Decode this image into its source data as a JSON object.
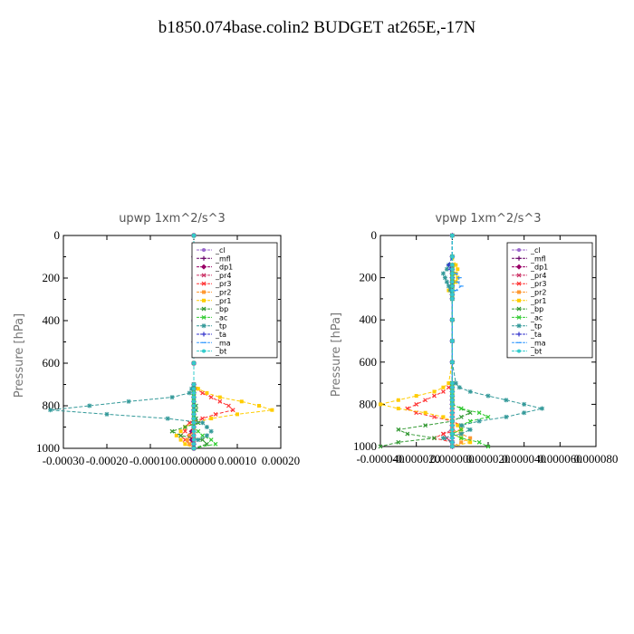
{
  "page_title": "b1850.074base.colin2  BUDGET at265E,-17N",
  "chart_data": [
    {
      "type": "line",
      "title": "upwp   1xm^2/s^3",
      "xlabel": "",
      "ylabel": "Pressure [hPa]",
      "xlim": [
        -0.0003,
        0.0002
      ],
      "ylim": [
        0,
        1000
      ],
      "y_inverted": true,
      "xticks": [
        -0.0003,
        -0.0002,
        -0.0001,
        0.0,
        0.0001,
        0.0002
      ],
      "xtick_labels": [
        "-0.00030",
        "-0.00020",
        "-0.00010",
        "0.000000",
        "0.00010",
        "0.00020"
      ],
      "yticks": [
        0,
        200,
        400,
        600,
        800,
        1000
      ],
      "ytick_labels": [
        "0",
        "200",
        "400",
        "600",
        "800",
        "1000"
      ],
      "legend_position": "top-right",
      "y": [
        0,
        100,
        200,
        300,
        400,
        500,
        600,
        700,
        720,
        740,
        760,
        780,
        800,
        820,
        840,
        860,
        880,
        900,
        920,
        940,
        960,
        980,
        1000
      ],
      "series": [
        {
          "name": "_cl",
          "color": "#9966cc",
          "values": [
            0,
            0,
            0,
            0,
            0,
            0,
            0,
            0,
            0,
            0,
            0,
            0,
            0,
            0,
            0,
            0,
            0,
            0,
            0,
            0,
            0,
            0,
            0
          ]
        },
        {
          "name": "_mfl",
          "color": "#660066",
          "values": [
            0,
            0,
            0,
            0,
            0,
            0,
            0,
            0,
            0,
            0,
            0,
            0,
            0,
            0,
            0,
            0,
            0,
            0,
            0,
            0,
            0,
            0,
            0
          ]
        },
        {
          "name": "_dp1",
          "color": "#990066",
          "values": [
            0,
            0,
            0,
            0,
            0,
            0,
            0,
            0,
            0,
            0,
            0,
            0,
            0,
            0,
            0,
            0,
            0,
            0,
            -5e-06,
            -1e-05,
            -5e-06,
            0,
            0
          ]
        },
        {
          "name": "_pr4",
          "color": "#cc3366",
          "values": [
            0,
            0,
            0,
            0,
            0,
            0,
            0,
            0,
            0,
            0,
            0,
            0,
            0,
            0,
            0,
            0,
            0,
            0,
            0,
            0,
            0,
            0,
            0
          ]
        },
        {
          "name": "_pr3",
          "color": "#ff3333",
          "values": [
            0,
            0,
            0,
            0,
            0,
            0,
            0,
            0,
            5e-06,
            2e-05,
            4e-05,
            6e-05,
            8e-05,
            9e-05,
            5e-05,
            2e-05,
            -1e-05,
            -2e-05,
            -2e-05,
            -3e-05,
            -2e-05,
            -1e-05,
            0
          ]
        },
        {
          "name": "_pr2",
          "color": "#ff9933",
          "values": [
            0,
            0,
            0,
            0,
            0,
            0,
            0,
            0,
            0,
            0,
            0,
            0,
            0,
            0,
            0,
            0,
            0,
            0,
            0,
            -1e-05,
            -1.5e-05,
            -1e-05,
            0
          ]
        },
        {
          "name": "_pr1",
          "color": "#ffcc00",
          "values": [
            0,
            0,
            0,
            0,
            0,
            0,
            0,
            0,
            1e-05,
            3e-05,
            6e-05,
            0.00011,
            0.00015,
            0.00018,
            0.0001,
            4e-05,
            0,
            -2e-05,
            -3e-05,
            -4e-05,
            -3e-05,
            -2e-05,
            0
          ]
        },
        {
          "name": "_bp",
          "color": "#339933",
          "values": [
            0,
            0,
            0,
            0,
            0,
            0,
            0,
            0,
            0,
            0,
            0,
            0,
            5e-06,
            5e-06,
            0,
            5e-06,
            1e-05,
            -2e-05,
            -5e-05,
            -3e-05,
            2e-05,
            3e-05,
            0
          ]
        },
        {
          "name": "_ac",
          "color": "#33cc33",
          "values": [
            0,
            0,
            0,
            0,
            0,
            0,
            0,
            0,
            0,
            0,
            0,
            0,
            0,
            0,
            0,
            0,
            0,
            0,
            1e-05,
            2e-05,
            4e-05,
            5e-05,
            0
          ]
        },
        {
          "name": "_tp",
          "color": "#339999",
          "values": [
            0,
            0,
            0,
            0,
            0,
            0,
            0,
            0,
            -5e-06,
            -1e-05,
            -5e-05,
            -0.00015,
            -0.00024,
            -0.00033,
            -0.0002,
            -6e-05,
            2e-05,
            3e-05,
            4e-05,
            3e-05,
            1e-05,
            0,
            0
          ]
        },
        {
          "name": "_ta",
          "color": "#3333cc",
          "values": [
            0,
            0,
            0,
            0,
            0,
            0,
            0,
            0,
            0,
            0,
            0,
            0,
            0,
            0,
            0,
            0,
            0,
            0,
            0,
            0,
            0,
            0,
            0
          ]
        },
        {
          "name": "_ma",
          "color": "#3399ff",
          "values": [
            0,
            0,
            0,
            0,
            0,
            0,
            0,
            0,
            0,
            0,
            0,
            0,
            0,
            0,
            0,
            0,
            0,
            0,
            0,
            0,
            0,
            0,
            0
          ]
        },
        {
          "name": "_bt",
          "color": "#33cccc",
          "values": [
            0,
            0,
            0,
            0,
            0,
            0,
            0,
            0,
            0,
            0,
            0,
            0,
            0,
            0,
            0,
            0,
            0,
            0,
            0,
            0,
            0,
            0,
            0
          ]
        }
      ]
    },
    {
      "type": "line",
      "title": "vpwp   1xm^2/s^3",
      "xlabel": "",
      "ylabel": "Pressure [hPa]",
      "xlim": [
        -4e-05,
        8e-05
      ],
      "ylim": [
        0,
        1000
      ],
      "y_inverted": true,
      "xticks": [
        -4e-05,
        -2e-05,
        0.0,
        2e-05,
        4e-05,
        6e-05,
        8e-05
      ],
      "xtick_labels": [
        "-0.000040",
        "-0.000020",
        "0.000000",
        "0.000020",
        "0.000040",
        "0.000060",
        "0.000080"
      ],
      "yticks": [
        0,
        200,
        400,
        600,
        800,
        1000
      ],
      "ytick_labels": [
        "0",
        "200",
        "400",
        "600",
        "800",
        "1000"
      ],
      "legend_position": "top-right",
      "y": [
        0,
        100,
        140,
        160,
        180,
        200,
        220,
        240,
        260,
        280,
        300,
        400,
        500,
        600,
        700,
        720,
        740,
        760,
        780,
        800,
        820,
        840,
        860,
        880,
        900,
        920,
        940,
        960,
        980,
        1000
      ],
      "series": [
        {
          "name": "_cl",
          "color": "#9966cc",
          "values": [
            0,
            0,
            0,
            0,
            0,
            0,
            0,
            0,
            0,
            0,
            0,
            0,
            0,
            0,
            0,
            0,
            0,
            0,
            0,
            0,
            0,
            0,
            0,
            0,
            0,
            0,
            0,
            0,
            0,
            0
          ]
        },
        {
          "name": "_mfl",
          "color": "#660066",
          "values": [
            0,
            0,
            0,
            0,
            0,
            0,
            0,
            0,
            0,
            0,
            0,
            0,
            0,
            0,
            0,
            0,
            0,
            0,
            0,
            0,
            0,
            0,
            0,
            0,
            0,
            0,
            0,
            0,
            0,
            0
          ]
        },
        {
          "name": "_dp1",
          "color": "#990066",
          "values": [
            0,
            0,
            0,
            0,
            0,
            0,
            0,
            0,
            0,
            0,
            0,
            0,
            0,
            0,
            0,
            0,
            0,
            0,
            0,
            0,
            0,
            0,
            0,
            0,
            0,
            0,
            0,
            0,
            0,
            0
          ]
        },
        {
          "name": "_pr4",
          "color": "#cc3366",
          "values": [
            0,
            0,
            0,
            0,
            0,
            0,
            0,
            0,
            0,
            0,
            0,
            0,
            0,
            0,
            0,
            0,
            0,
            0,
            0,
            0,
            0,
            0,
            0,
            0,
            0,
            0,
            -5e-06,
            -3e-06,
            0,
            0
          ]
        },
        {
          "name": "_pr3",
          "color": "#ff3333",
          "values": [
            0,
            0,
            0,
            0,
            0,
            0,
            0,
            0,
            0,
            0,
            0,
            0,
            0,
            0,
            0,
            -2e-06,
            -5e-06,
            -1e-05,
            -1.5e-05,
            -2e-05,
            -2.5e-05,
            -2e-05,
            -1e-05,
            0,
            5e-06,
            5e-06,
            -5e-06,
            -1e-05,
            0,
            0
          ]
        },
        {
          "name": "_pr2",
          "color": "#ff9933",
          "values": [
            0,
            0,
            0,
            0,
            0,
            0,
            0,
            0,
            0,
            0,
            0,
            0,
            0,
            0,
            0,
            0,
            0,
            0,
            0,
            0,
            0,
            0,
            0,
            0,
            0,
            0,
            5e-06,
            1e-05,
            5e-06,
            0
          ]
        },
        {
          "name": "_pr1",
          "color": "#ffcc00",
          "values": [
            0,
            0,
            2e-06,
            3e-06,
            2e-06,
            3e-06,
            2e-06,
            0,
            -2e-06,
            0,
            0,
            0,
            0,
            0,
            -2e-06,
            -5e-06,
            -1e-05,
            -2e-05,
            -3e-05,
            -4e-05,
            -3e-05,
            -1.5e-05,
            -5e-06,
            0,
            3e-06,
            5e-06,
            0,
            5e-06,
            1e-05,
            0
          ]
        },
        {
          "name": "_bp",
          "color": "#339933",
          "values": [
            0,
            0,
            0,
            0,
            0,
            0,
            0,
            0,
            0,
            0,
            0,
            0,
            0,
            0,
            0,
            0,
            0,
            0,
            0,
            0,
            5e-06,
            1e-05,
            5e-06,
            0,
            -1.5e-05,
            -3e-05,
            -2.5e-05,
            -1e-05,
            -3e-05,
            -4e-05
          ]
        },
        {
          "name": "_ac",
          "color": "#33cc33",
          "values": [
            0,
            0,
            0,
            0,
            0,
            0,
            0,
            0,
            0,
            0,
            0,
            0,
            0,
            0,
            0,
            0,
            0,
            0,
            0,
            0,
            5e-06,
            1.5e-05,
            2e-05,
            1e-05,
            5e-06,
            5e-06,
            0,
            5e-06,
            1.5e-05,
            2e-05
          ]
        },
        {
          "name": "_tp",
          "color": "#339999",
          "values": [
            0,
            0,
            -2e-06,
            -3e-06,
            -5e-06,
            -4e-06,
            -3e-06,
            -2e-06,
            -1e-06,
            0,
            0,
            0,
            0,
            0,
            2e-06,
            4e-06,
            1e-05,
            2e-05,
            3e-05,
            4e-05,
            5e-05,
            4e-05,
            3e-05,
            1.5e-05,
            5e-06,
            1e-05,
            5e-06,
            -5e-06,
            0,
            0
          ]
        },
        {
          "name": "_ta",
          "color": "#3333cc",
          "values": [
            0,
            0,
            -2e-06,
            -1e-06,
            0,
            0,
            0,
            0,
            0,
            0,
            0,
            0,
            0,
            0,
            0,
            0,
            0,
            0,
            0,
            0,
            0,
            0,
            0,
            0,
            0,
            0,
            0,
            0,
            0,
            0
          ]
        },
        {
          "name": "_ma",
          "color": "#3399ff",
          "values": [
            0,
            0,
            0,
            0,
            2e-06,
            4e-06,
            3e-06,
            5e-06,
            2e-06,
            0,
            0,
            0,
            0,
            0,
            0,
            0,
            0,
            0,
            0,
            0,
            0,
            0,
            0,
            0,
            0,
            0,
            0,
            0,
            0,
            0
          ]
        },
        {
          "name": "_bt",
          "color": "#33cccc",
          "values": [
            0,
            0,
            0,
            0,
            0,
            0,
            0,
            0,
            0,
            0,
            0,
            0,
            0,
            0,
            0,
            0,
            0,
            0,
            0,
            0,
            0,
            0,
            0,
            0,
            0,
            0,
            0,
            0,
            0,
            0
          ]
        }
      ]
    }
  ]
}
